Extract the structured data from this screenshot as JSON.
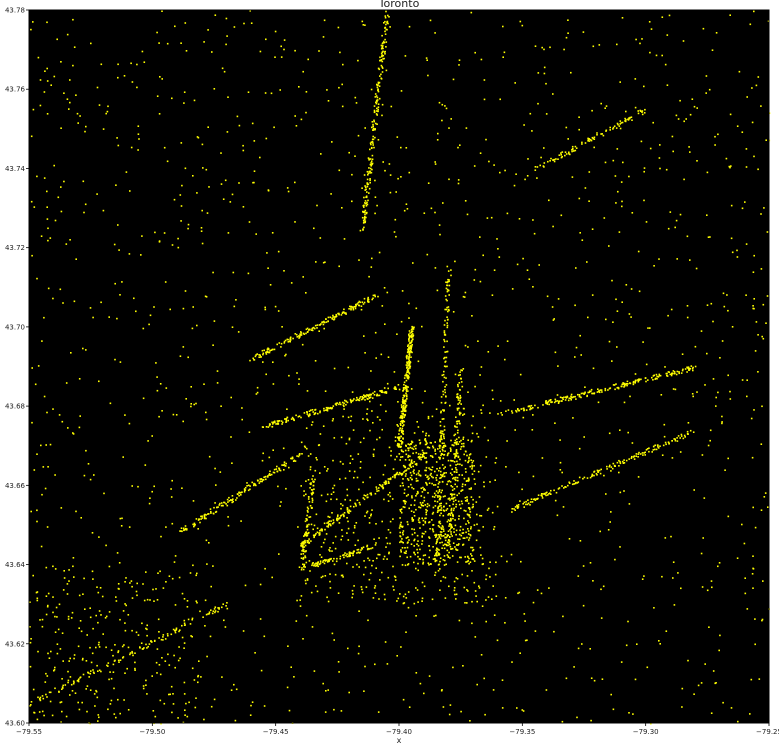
{
  "chart_data": {
    "type": "scatter",
    "title": "Toronto",
    "xlabel": "x",
    "ylabel": "",
    "xlim": [
      -79.55,
      -79.25
    ],
    "ylim": [
      43.6,
      43.78
    ],
    "xticks": [
      -79.55,
      -79.5,
      -79.45,
      -79.4,
      -79.35,
      -79.3,
      -79.25
    ],
    "yticks": [
      43.6,
      43.62,
      43.64,
      43.66,
      43.68,
      43.7,
      43.72,
      43.74,
      43.76,
      43.78
    ],
    "xtick_labels": [
      "−79.55",
      "−79.50",
      "−79.45",
      "−79.40",
      "−79.35",
      "−79.30",
      "−79.25"
    ],
    "ytick_labels": [
      "43.60",
      "43.62",
      "43.64",
      "43.66",
      "43.68",
      "43.70",
      "43.72",
      "43.74",
      "43.76",
      "43.78"
    ],
    "grid": false,
    "background_color": "#000000",
    "point_color": "#ffff00",
    "point_clusters": [
      {
        "x": [
          -79.4,
          -79.395
        ],
        "y": [
          43.67,
          43.7
        ],
        "shape": "line",
        "n": 260
      },
      {
        "x": [
          -79.415,
          -79.405
        ],
        "y": [
          43.725,
          43.78
        ],
        "shape": "line",
        "n": 200
      },
      {
        "x": [
          -79.46,
          -79.41
        ],
        "y": [
          43.692,
          43.708
        ],
        "shape": "line",
        "n": 160
      },
      {
        "x": [
          -79.455,
          -79.4
        ],
        "y": [
          43.675,
          43.685
        ],
        "shape": "line",
        "n": 160
      },
      {
        "x": [
          -79.36,
          -79.28
        ],
        "y": [
          43.678,
          43.69
        ],
        "shape": "line",
        "n": 200
      },
      {
        "x": [
          -79.355,
          -79.28
        ],
        "y": [
          43.654,
          43.674
        ],
        "shape": "line",
        "n": 160
      },
      {
        "x": [
          -79.49,
          -79.44
        ],
        "y": [
          43.648,
          43.668
        ],
        "shape": "line",
        "n": 150
      },
      {
        "x": [
          -79.44,
          -79.39
        ],
        "y": [
          43.645,
          43.668
        ],
        "shape": "line",
        "n": 150
      },
      {
        "x": [
          -79.385,
          -79.38
        ],
        "y": [
          43.64,
          43.715
        ],
        "shape": "line",
        "n": 170
      },
      {
        "x": [
          -79.38,
          -79.375
        ],
        "y": [
          43.645,
          43.69
        ],
        "shape": "line",
        "n": 120
      },
      {
        "x": [
          -79.4,
          -79.37
        ],
        "y": [
          43.64,
          43.672
        ],
        "shape": "blob",
        "n": 520
      },
      {
        "x": [
          -79.44,
          -79.36
        ],
        "y": [
          43.63,
          43.68
        ],
        "shape": "blob",
        "n": 420
      },
      {
        "x": [
          -79.55,
          -79.25
        ],
        "y": [
          43.6,
          43.78
        ],
        "shape": "blob",
        "n": 1400
      },
      {
        "x": [
          -79.55,
          -79.48
        ],
        "y": [
          43.6,
          43.64
        ],
        "shape": "blob",
        "n": 220
      },
      {
        "x": [
          -79.55,
          -79.47
        ],
        "y": [
          43.605,
          43.63
        ],
        "shape": "line",
        "n": 110
      },
      {
        "x": [
          -79.345,
          -79.3
        ],
        "y": [
          43.74,
          43.755
        ],
        "shape": "line",
        "n": 90
      },
      {
        "x": [
          -79.44,
          -79.435
        ],
        "y": [
          43.638,
          43.662
        ],
        "shape": "line",
        "n": 80
      },
      {
        "x": [
          -79.435,
          -79.41
        ],
        "y": [
          43.64,
          43.645
        ],
        "shape": "line",
        "n": 70
      }
    ]
  }
}
